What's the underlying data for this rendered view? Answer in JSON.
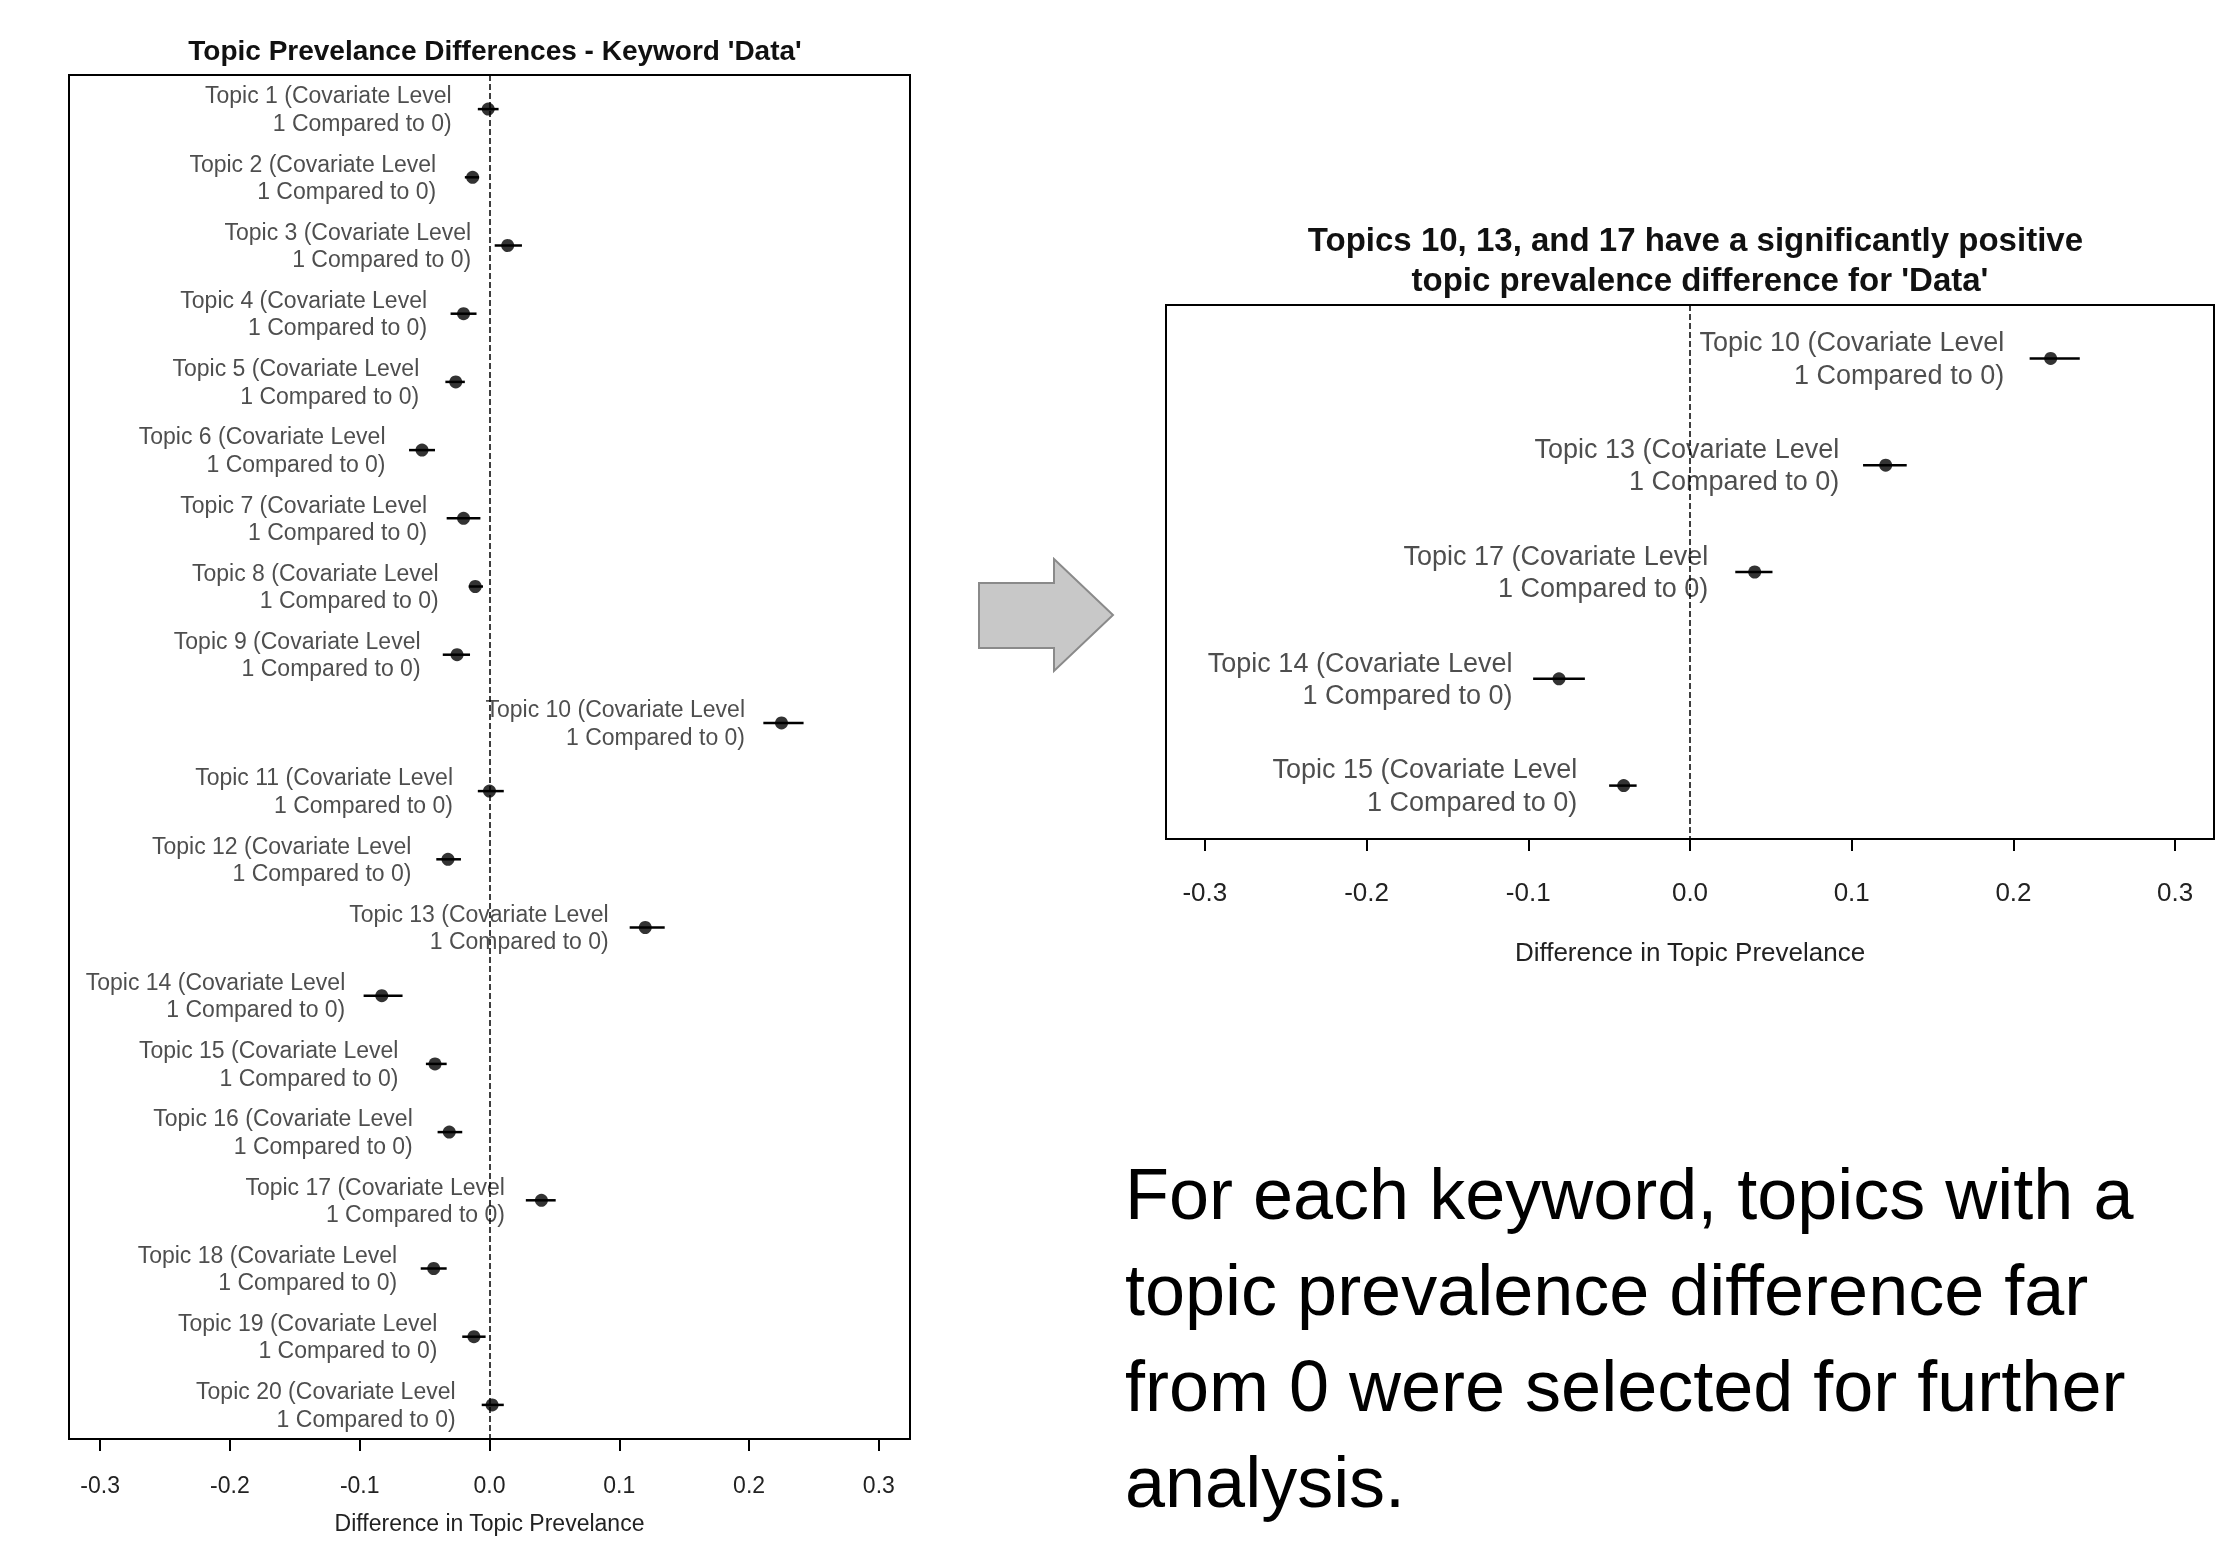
{
  "chart_data": [
    {
      "type": "scatter",
      "title": "Topic Prevelance Differences - Keyword 'Data'",
      "xlabel": "Difference in Topic Prevelance",
      "orientation": "horizontal",
      "tick_labels": "x",
      "marker": "circle",
      "xlim": [
        -0.324,
        0.324
      ],
      "xticks": [
        -0.3,
        -0.2,
        -0.1,
        {
          "value": 0,
          "label": "0.0"
        },
        0.1,
        0.2,
        0.3
      ],
      "ref_lines": [
        {
          "axis": "x",
          "value": 0,
          "color": "#000000",
          "line_style": "dashed"
        }
      ],
      "categories": [
        "Topic 1 (Covariate Level\n1 Compared to 0)",
        "Topic 2 (Covariate Level\n1 Compared to 0)",
        "Topic 3 (Covariate Level\n1 Compared to 0)",
        "Topic 4 (Covariate Level\n1 Compared to 0)",
        "Topic 5 (Covariate Level\n1 Compared to 0)",
        "Topic 6 (Covariate Level\n1 Compared to 0)",
        "Topic 7 (Covariate Level\n1 Compared to 0)",
        "Topic 8 (Covariate Level\n1 Compared to 0)",
        "Topic 9 (Covariate Level\n1 Compared to 0)",
        "Topic 10 (Covariate Level\n1 Compared to 0)",
        "Topic 11 (Covariate Level\n1 Compared to 0)",
        "Topic 12 (Covariate Level\n1 Compared to 0)",
        "Topic 13 (Covariate Level\n1 Compared to 0)",
        "Topic 14 (Covariate Level\n1 Compared to 0)",
        "Topic 15 (Covariate Level\n1 Compared to 0)",
        "Topic 16 (Covariate Level\n1 Compared to 0)",
        "Topic 17 (Covariate Level\n1 Compared to 0)",
        "Topic 18 (Covariate Level\n1 Compared to 0)",
        "Topic 19 (Covariate Level\n1 Compared to 0)",
        "Topic 20 (Covariate Level\n1 Compared to 0)"
      ],
      "series": [
        {
          "color": "#000000",
          "values": [
            -0.001,
            -0.013,
            0.014,
            -0.02,
            -0.026,
            -0.052,
            -0.02,
            -0.011,
            -0.025,
            0.225,
            0,
            -0.032,
            0.12,
            -0.083,
            -0.042,
            -0.031,
            0.04,
            -0.043,
            -0.012,
            0.002
          ],
          "errors": [
            [
              -0.009,
              0.007
            ],
            [
              -0.019,
              -0.008
            ],
            [
              0.004,
              0.025
            ],
            [
              -0.03,
              -0.01
            ],
            [
              -0.034,
              -0.019
            ],
            [
              -0.062,
              -0.042
            ],
            [
              -0.033,
              -0.007
            ],
            [
              -0.016,
              -0.005
            ],
            [
              -0.036,
              -0.015
            ],
            [
              0.211,
              0.242
            ],
            [
              -0.009,
              0.011
            ],
            [
              -0.041,
              -0.022
            ],
            [
              0.108,
              0.135
            ],
            [
              -0.097,
              -0.067
            ],
            [
              -0.049,
              -0.033
            ],
            [
              -0.04,
              -0.021
            ],
            [
              0.028,
              0.051
            ],
            [
              -0.053,
              -0.033
            ],
            [
              -0.021,
              -0.003
            ],
            [
              -0.006,
              0.011
            ]
          ]
        }
      ]
    },
    {
      "type": "scatter",
      "title": "Topics 10, 13, and 17 have a significantly positive topic prevalence difference for 'Data'",
      "xlabel": "Difference in Topic Prevelance",
      "orientation": "horizontal",
      "tick_labels": "x",
      "marker": "circle",
      "xlim": [
        -0.324,
        0.324
      ],
      "xticks": [
        -0.3,
        -0.2,
        -0.1,
        {
          "value": 0,
          "label": "0.0"
        },
        0.1,
        0.2,
        0.3
      ],
      "ref_lines": [
        {
          "axis": "x",
          "value": 0,
          "color": "#000000",
          "line_style": "dashed"
        }
      ],
      "annotations": [
        "For each keyword, topics with a topic prevalence difference far from 0 were selected for further analysis."
      ],
      "categories": [
        "Topic 10 (Covariate Level\n1 Compared to 0)",
        "Topic 13 (Covariate Level\n1 Compared to 0)",
        "Topic 17 (Covariate Level\n1 Compared to 0)",
        "Topic 14 (Covariate Level\n1 Compared to 0)",
        "Topic 15 (Covariate Level\n1 Compared to 0)"
      ],
      "series": [
        {
          "color": "#000000",
          "values": [
            0.223,
            0.121,
            0.04,
            -0.081,
            -0.041
          ],
          "errors": [
            [
              0.21,
              0.241
            ],
            [
              0.107,
              0.134
            ],
            [
              0.028,
              0.051
            ],
            [
              -0.097,
              -0.065
            ],
            [
              -0.05,
              -0.033
            ]
          ]
        }
      ]
    }
  ]
}
